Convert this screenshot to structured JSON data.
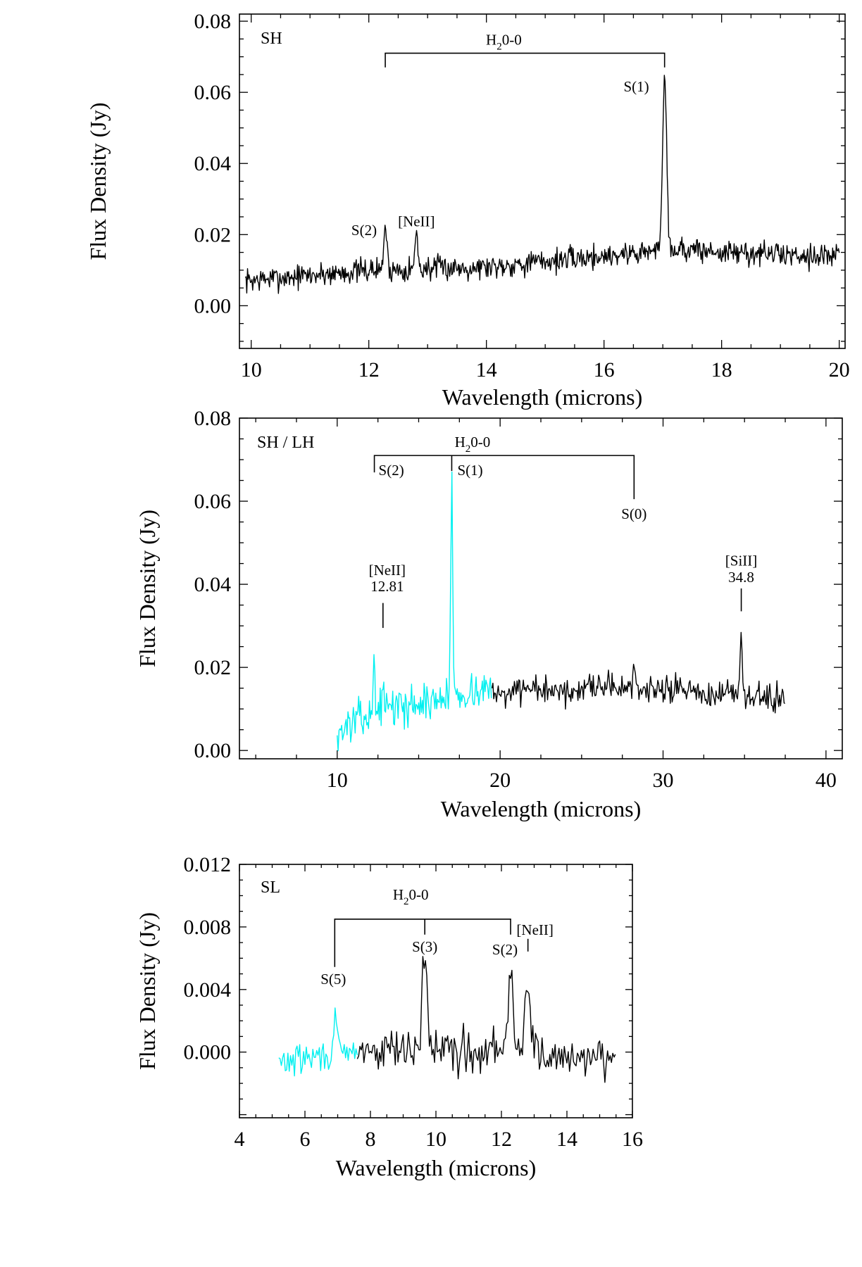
{
  "colors": {
    "black": "#000000",
    "cyan": "#00f0f0"
  },
  "chart_data": [
    {
      "type": "line",
      "panel_label": "SH",
      "xlabel": "Wavelength (microns)",
      "ylabel": "Flux Density (Jy)",
      "xlim": [
        9.8,
        20.1
      ],
      "ylim": [
        -0.012,
        0.082
      ],
      "xticks": [
        10,
        12,
        14,
        16,
        18,
        20
      ],
      "xtick_labels": [
        "10",
        "12",
        "14",
        "16",
        "18",
        "20"
      ],
      "yticks": [
        0.0,
        0.02,
        0.04,
        0.06,
        0.08
      ],
      "ytick_labels": [
        "0.00",
        "0.02",
        "0.04",
        "0.06",
        "0.08"
      ],
      "series": [
        {
          "color": "#000000",
          "x_range": [
            9.9,
            20.0
          ],
          "baseline": [
            [
              9.9,
              0.007
            ],
            [
              12.0,
              0.01
            ],
            [
              14.0,
              0.011
            ],
            [
              16.0,
              0.014
            ],
            [
              17.2,
              0.016
            ],
            [
              18.0,
              0.015
            ],
            [
              20.0,
              0.014
            ]
          ],
          "noise": 0.0017,
          "lines": [
            {
              "x": 12.28,
              "peak": 0.023,
              "width": 0.025
            },
            {
              "x": 12.81,
              "peak": 0.02,
              "width": 0.025
            },
            {
              "x": 17.03,
              "peak": 0.065,
              "width": 0.035
            }
          ]
        }
      ],
      "annotations": [
        {
          "text": "S(2)",
          "x": 12.28,
          "y": 0.023
        },
        {
          "text": "[NeII]",
          "x": 12.81,
          "y": 0.02
        },
        {
          "text": "S(1)",
          "x": 17.03,
          "y": 0.065
        }
      ],
      "bracket": {
        "label": "H",
        "label_sub": "2",
        "label_rest": "0-0",
        "x1": 12.28,
        "x2": 17.03,
        "y": 0.071,
        "drop": 0.004
      }
    },
    {
      "type": "line",
      "panel_label": "SH / LH",
      "xlabel": "Wavelength (microns)",
      "ylabel": "Flux Density (Jy)",
      "xlim": [
        4.0,
        41.0
      ],
      "ylim": [
        -0.002,
        0.08
      ],
      "xticks": [
        10,
        20,
        30,
        40
      ],
      "xtick_labels": [
        "10",
        "20",
        "30",
        "40"
      ],
      "yticks": [
        0.0,
        0.02,
        0.04,
        0.06,
        0.08
      ],
      "ytick_labels": [
        "0.00",
        "0.02",
        "0.04",
        "0.06",
        "0.08"
      ],
      "series": [
        {
          "color": "#00f0f0",
          "x_range": [
            10.0,
            19.5
          ],
          "baseline": [
            [
              10.0,
              0.004
            ],
            [
              11.0,
              0.007
            ],
            [
              13.0,
              0.01
            ],
            [
              16.0,
              0.012
            ],
            [
              18.0,
              0.014
            ],
            [
              19.5,
              0.015
            ]
          ],
          "noise": 0.0022,
          "lines": [
            {
              "x": 12.28,
              "peak": 0.023,
              "width": 0.05
            },
            {
              "x": 12.81,
              "peak": 0.02,
              "width": 0.05
            },
            {
              "x": 17.03,
              "peak": 0.065,
              "width": 0.06
            }
          ]
        },
        {
          "color": "#000000",
          "x_range": [
            19.5,
            37.5
          ],
          "baseline": [
            [
              19.5,
              0.014
            ],
            [
              24.0,
              0.014
            ],
            [
              29.0,
              0.015
            ],
            [
              32.0,
              0.014
            ],
            [
              34.0,
              0.013
            ],
            [
              37.5,
              0.012
            ]
          ],
          "noise": 0.0018,
          "lines": [
            {
              "x": 28.22,
              "peak": 0.02,
              "width": 0.08
            },
            {
              "x": 34.8,
              "peak": 0.025,
              "width": 0.08
            }
          ]
        }
      ],
      "annotations": [
        {
          "text": "S(2)",
          "x": 12.28
        },
        {
          "text": "S(1)",
          "x": 17.03
        },
        {
          "text": "S(0)",
          "x": 28.22
        },
        {
          "text": "[NeII]",
          "text2": "12.81",
          "x": 12.81
        },
        {
          "text": "[SiII]",
          "text2": "34.8",
          "x": 34.8
        }
      ],
      "bracket": {
        "label": "H",
        "label_sub": "2",
        "label_rest": "0-0",
        "x1": 12.28,
        "x2": 28.22,
        "xmid": 17.03,
        "y": 0.071
      }
    },
    {
      "type": "line",
      "panel_label": "SL",
      "xlabel": "Wavelength (microns)",
      "ylabel": "Flux Density (Jy)",
      "xlim": [
        4.0,
        16.0
      ],
      "ylim": [
        -0.0042,
        0.012
      ],
      "xticks": [
        4,
        6,
        8,
        10,
        12,
        14,
        16
      ],
      "xtick_labels": [
        "4",
        "6",
        "8",
        "10",
        "12",
        "14",
        "16"
      ],
      "yticks": [
        0.0,
        0.004,
        0.008,
        0.012
      ],
      "ytick_labels": [
        "0.000",
        "0.004",
        "0.008",
        "0.012"
      ],
      "series": [
        {
          "color": "#00f0f0",
          "x_range": [
            5.2,
            7.6
          ],
          "baseline": [
            [
              5.2,
              -0.0007
            ],
            [
              6.0,
              -0.0004
            ],
            [
              7.0,
              -0.0002
            ],
            [
              7.6,
              -0.0001
            ]
          ],
          "noise": 0.0005,
          "lines": [
            {
              "x": 6.91,
              "peak": 0.0024,
              "width": 0.05
            }
          ]
        },
        {
          "color": "#000000",
          "x_range": [
            7.6,
            15.5
          ],
          "baseline": [
            [
              7.6,
              0.0
            ],
            [
              10.0,
              0.0001
            ],
            [
              12.0,
              0.0
            ],
            [
              14.0,
              -0.0003
            ],
            [
              15.5,
              0.0
            ]
          ],
          "noise": 0.0007,
          "lines": [
            {
              "x": 9.66,
              "peak": 0.0063,
              "width": 0.08
            },
            {
              "x": 12.28,
              "peak": 0.0052,
              "width": 0.08
            },
            {
              "x": 12.81,
              "peak": 0.0047,
              "width": 0.08
            }
          ]
        }
      ],
      "annotations": [
        {
          "text": "S(5)",
          "x": 6.91
        },
        {
          "text": "S(3)",
          "x": 9.66
        },
        {
          "text": "S(2)",
          "x": 12.28
        },
        {
          "text": "[NeII]",
          "x": 12.81
        }
      ],
      "bracket": {
        "label": "H",
        "label_sub": "2",
        "label_rest": "0-0",
        "x1": 6.91,
        "x2": 12.28,
        "xmid": 9.66,
        "y": 0.0085
      }
    }
  ]
}
